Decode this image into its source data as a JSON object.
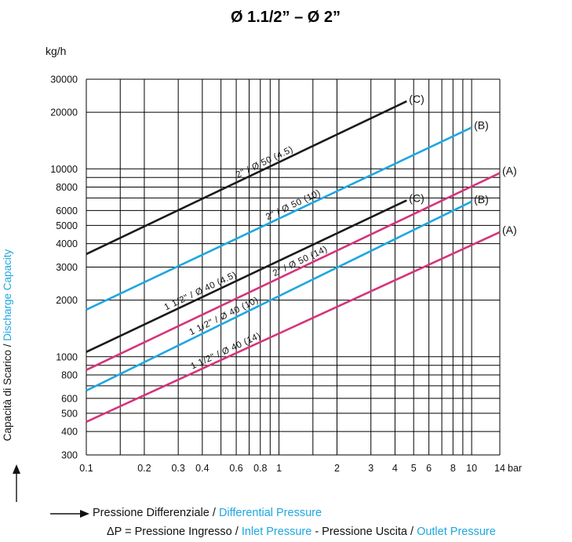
{
  "header": {
    "title": "Ø 1.1/2” – Ø 2”",
    "unit": "kg/h"
  },
  "y_axis_label": {
    "part1": "Capacità di Scarico / ",
    "part2": "Discharge Capacity"
  },
  "footer": {
    "line1_a": "Pressione Differenziale / ",
    "line1_b": "Differential Pressure",
    "line2_a": "ΔP = Pressione Ingresso / ",
    "line2_b": "Inlet Pressure",
    "line2_c": " - Pressione Uscita / ",
    "line2_d": "Outlet Pressure"
  },
  "colors": {
    "black": "#1a1a1a",
    "blue": "#1ea7e0",
    "magenta": "#d6337a",
    "grid": "#000000"
  },
  "chart_data": {
    "type": "line",
    "x_scale": "log",
    "y_scale": "log",
    "xlim": [
      0.1,
      14
    ],
    "ylim": [
      300,
      30000
    ],
    "x_ticks": [
      {
        "v": 0.1,
        "label": "0.1"
      },
      {
        "v": 0.2,
        "label": "0.2"
      },
      {
        "v": 0.3,
        "label": "0.3"
      },
      {
        "v": 0.4,
        "label": "0.4"
      },
      {
        "v": 0.6,
        "label": "0.6"
      },
      {
        "v": 0.8,
        "label": "0.8"
      },
      {
        "v": 1,
        "label": "1"
      },
      {
        "v": 2,
        "label": "2"
      },
      {
        "v": 3,
        "label": "3"
      },
      {
        "v": 4,
        "label": "4"
      },
      {
        "v": 5,
        "label": "5"
      },
      {
        "v": 6,
        "label": "6"
      },
      {
        "v": 8,
        "label": "8"
      },
      {
        "v": 10,
        "label": "10"
      },
      {
        "v": 14,
        "label": "14"
      }
    ],
    "x_unit_label": "bar",
    "x_grid": [
      0.1,
      0.15,
      0.2,
      0.3,
      0.4,
      0.5,
      0.6,
      0.7,
      0.8,
      0.9,
      1,
      1.5,
      2,
      3,
      4,
      5,
      6,
      7,
      8,
      9,
      10,
      14
    ],
    "y_ticks": [
      {
        "v": 300,
        "label": "300"
      },
      {
        "v": 400,
        "label": "400"
      },
      {
        "v": 500,
        "label": "500"
      },
      {
        "v": 600,
        "label": "600"
      },
      {
        "v": 800,
        "label": "800"
      },
      {
        "v": 1000,
        "label": "1000"
      },
      {
        "v": 2000,
        "label": "2000"
      },
      {
        "v": 3000,
        "label": "3000"
      },
      {
        "v": 4000,
        "label": "4000"
      },
      {
        "v": 5000,
        "label": "5000"
      },
      {
        "v": 6000,
        "label": "6000"
      },
      {
        "v": 8000,
        "label": "8000"
      },
      {
        "v": 10000,
        "label": "10000"
      },
      {
        "v": 20000,
        "label": "20000"
      },
      {
        "v": 30000,
        "label": "30000"
      }
    ],
    "y_grid": [
      300,
      400,
      500,
      600,
      700,
      800,
      900,
      1000,
      2000,
      3000,
      4000,
      5000,
      6000,
      7000,
      8000,
      9000,
      10000,
      20000,
      30000
    ],
    "grid": true,
    "series": [
      {
        "name": "2\" / Ø 50 (4.5)",
        "color": "black",
        "end_label": "(C)",
        "x": [
          0.1,
          4.6
        ],
        "y": [
          3520,
          22900
        ]
      },
      {
        "name": "2\" / Ø 50 (10)",
        "color": "blue",
        "end_label": "(B)",
        "x": [
          0.1,
          10
        ],
        "y": [
          1780,
          16600
        ]
      },
      {
        "name": "2\" / Ø 50 (14)",
        "color": "magenta",
        "end_label": "(A)",
        "x": [
          0.1,
          14
        ],
        "y": [
          850,
          9500
        ]
      },
      {
        "name": "1 1/2\" / Ø 40 (4.5)",
        "color": "black",
        "end_label": "(C)",
        "x": [
          0.1,
          4.6
        ],
        "y": [
          1060,
          6800
        ]
      },
      {
        "name": "1 1/2\" / Ø 40 (10)",
        "color": "blue",
        "end_label": "(B)",
        "x": [
          0.1,
          10
        ],
        "y": [
          660,
          6700
        ]
      },
      {
        "name": "1 1/2\" / Ø 40 (14)",
        "color": "magenta",
        "end_label": "(A)",
        "x": [
          0.1,
          14
        ],
        "y": [
          450,
          4600
        ]
      }
    ],
    "xlabel": "Pressione Differenziale / Differential Pressure",
    "ylabel": "Capacità di Scarico / Discharge Capacity",
    "title": "Ø 1.1/2” – Ø 2”"
  }
}
